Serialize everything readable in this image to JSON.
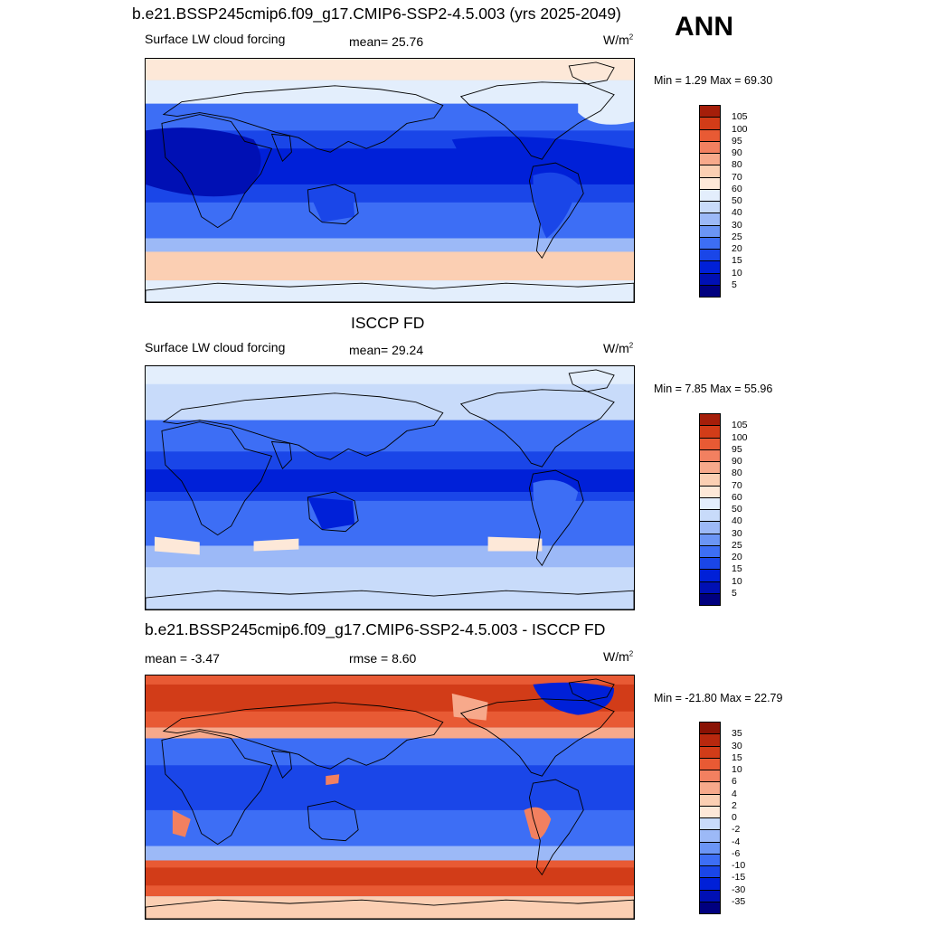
{
  "title_main": "b.e21.BSSP245cmip6.f09_g17.CMIP6-SSP2-4.5.003 (yrs 2025-2049)",
  "season": "ANN",
  "panels": [
    {
      "id": "model",
      "heading": "",
      "left_text": "Surface LW cloud forcing",
      "stat_text": "mean=  25.76",
      "units": "W/m",
      "units_sup": "2",
      "minmax": "Min =   1.29 Max =  69.30",
      "colorbar_labels": [
        "105",
        "100",
        "95",
        "90",
        "80",
        "70",
        "60",
        "50",
        "40",
        "30",
        "25",
        "20",
        "15",
        "10",
        "5"
      ]
    },
    {
      "id": "obs",
      "heading": "ISCCP FD",
      "left_text": "Surface LW cloud forcing",
      "stat_text": "mean=  29.24",
      "units": "W/m",
      "units_sup": "2",
      "minmax": "Min =   7.85 Max =  55.96",
      "colorbar_labels": [
        "105",
        "100",
        "95",
        "90",
        "80",
        "70",
        "60",
        "50",
        "40",
        "30",
        "25",
        "20",
        "15",
        "10",
        "5"
      ]
    },
    {
      "id": "diff",
      "heading": "b.e21.BSSP245cmip6.f09_g17.CMIP6-SSP2-4.5.003 - ISCCP FD",
      "left_text": "mean =  -3.47",
      "stat_text": "rmse =   8.60",
      "units": "W/m",
      "units_sup": "2",
      "minmax": "Min = -21.80 Max =  22.79",
      "colorbar_labels": [
        "35",
        "30",
        "15",
        "10",
        "6",
        "4",
        "2",
        "0",
        "-2",
        "-4",
        "-6",
        "-10",
        "-15",
        "-30",
        "-35"
      ]
    }
  ],
  "chart_data": [
    {
      "type": "heatmap",
      "title": "Surface LW cloud forcing",
      "units": "W/m2",
      "mean": 25.76,
      "min": 1.29,
      "max": 69.3,
      "levels": [
        5,
        10,
        15,
        20,
        25,
        30,
        40,
        50,
        60,
        70,
        80,
        90,
        95,
        100,
        105
      ],
      "colors": [
        "#00007f",
        "#0010b4",
        "#0020d8",
        "#1a46e8",
        "#3d6ef5",
        "#6b95f5",
        "#9cb9f7",
        "#c8dbfa",
        "#e3eefc",
        "#fde8d8",
        "#fbcfb3",
        "#f7a98b",
        "#f28060",
        "#e85a34",
        "#d23c18",
        "#a51e0a"
      ]
    },
    {
      "type": "heatmap",
      "title": "Surface LW cloud forcing",
      "units": "W/m2",
      "mean": 29.24,
      "min": 7.85,
      "max": 55.96,
      "levels": [
        5,
        10,
        15,
        20,
        25,
        30,
        40,
        50,
        60,
        70,
        80,
        90,
        95,
        100,
        105
      ],
      "colors": [
        "#00007f",
        "#0010b4",
        "#0020d8",
        "#1a46e8",
        "#3d6ef5",
        "#6b95f5",
        "#9cb9f7",
        "#c8dbfa",
        "#e3eefc",
        "#fde8d8",
        "#fbcfb3",
        "#f7a98b",
        "#f28060",
        "#e85a34",
        "#d23c18",
        "#a51e0a"
      ]
    },
    {
      "type": "heatmap",
      "title": "b.e21.BSSP245cmip6.f09_g17.CMIP6-SSP2-4.5.003 - ISCCP FD",
      "units": "W/m2",
      "mean": -3.47,
      "rmse": 8.6,
      "min": -21.8,
      "max": 22.79,
      "levels": [
        -35,
        -30,
        -15,
        -10,
        -6,
        -4,
        -2,
        0,
        2,
        4,
        6,
        10,
        15,
        30,
        35
      ],
      "colors": [
        "#00007f",
        "#0010b4",
        "#0020d8",
        "#1a46e8",
        "#3d6ef5",
        "#6b95f5",
        "#9cb9f7",
        "#c8dbfa",
        "#fde8d8",
        "#fbcfb3",
        "#f7a98b",
        "#f28060",
        "#e85a34",
        "#d23c18",
        "#b8280e",
        "#8a1204"
      ]
    }
  ]
}
